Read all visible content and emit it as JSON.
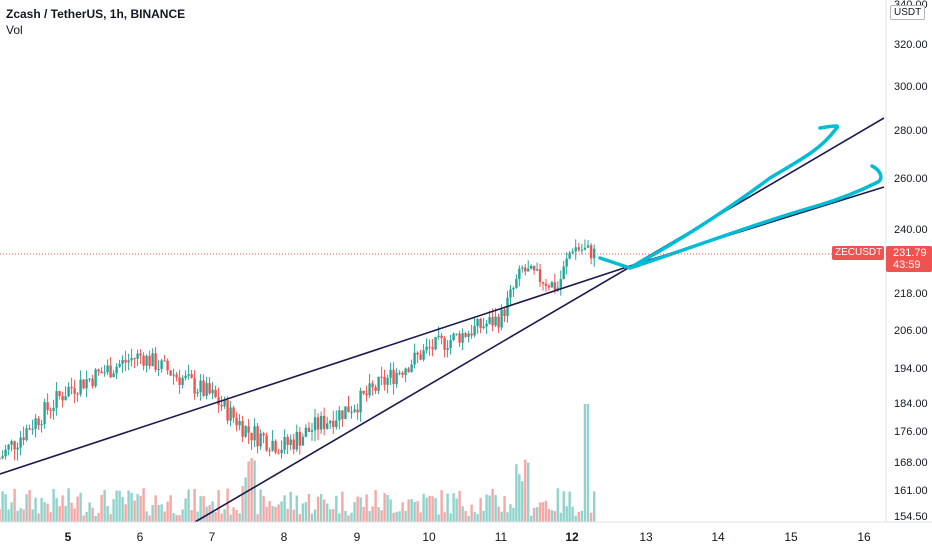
{
  "header": {
    "symbol_line": "Zcash / TetherUS, 1h, BINANCE",
    "vol_label": "Vol"
  },
  "price_axis": {
    "currency_label": "USDT",
    "ticks": [
      "340.00",
      "320.00",
      "300.00",
      "280.00",
      "260.00",
      "240.00",
      "218.00",
      "206.00",
      "194.00",
      "184.00",
      "176.00",
      "168.00",
      "161.00",
      "154.50"
    ]
  },
  "time_axis": {
    "labels": [
      {
        "text": "5",
        "bold": true
      },
      {
        "text": "6",
        "bold": false
      },
      {
        "text": "7",
        "bold": false
      },
      {
        "text": "8",
        "bold": false
      },
      {
        "text": "9",
        "bold": false
      },
      {
        "text": "10",
        "bold": false
      },
      {
        "text": "11",
        "bold": false
      },
      {
        "text": "12",
        "bold": true
      },
      {
        "text": "13",
        "bold": false
      },
      {
        "text": "14",
        "bold": false
      },
      {
        "text": "15",
        "bold": false
      },
      {
        "text": "16",
        "bold": false
      }
    ]
  },
  "last_price_badge": {
    "symbol": "ZECUSDT",
    "price": "231.79",
    "countdown": "43:59"
  },
  "colors": {
    "up": "#26a69a",
    "down": "#ef5350",
    "vol_up": "#8fd3cc",
    "vol_down": "#f5a8a6",
    "trendline": "#1a1a4e",
    "drawing": "#00bcd4",
    "price_line": "#ef5350"
  },
  "chart_data": {
    "type": "candlestick",
    "title": "Zcash / TetherUS, 1h, BINANCE",
    "x_range": [
      "4",
      "16"
    ],
    "y_range": [
      150,
      340
    ],
    "key_levels": [
      {
        "time": "4",
        "price": 168
      },
      {
        "time": "5",
        "price": 188
      },
      {
        "time": "6",
        "price": 198
      },
      {
        "time": "7",
        "price": 186
      },
      {
        "time": "7.5",
        "price": 176
      },
      {
        "time": "8",
        "price": 172
      },
      {
        "time": "9",
        "price": 184
      },
      {
        "time": "10",
        "price": 200
      },
      {
        "time": "11",
        "price": 210
      },
      {
        "time": "11.3",
        "price": 226
      },
      {
        "time": "11.8",
        "price": 220
      },
      {
        "time": "12",
        "price": 234
      },
      {
        "time": "12.3",
        "price": 231.79
      }
    ],
    "last_price": 231.79
  }
}
